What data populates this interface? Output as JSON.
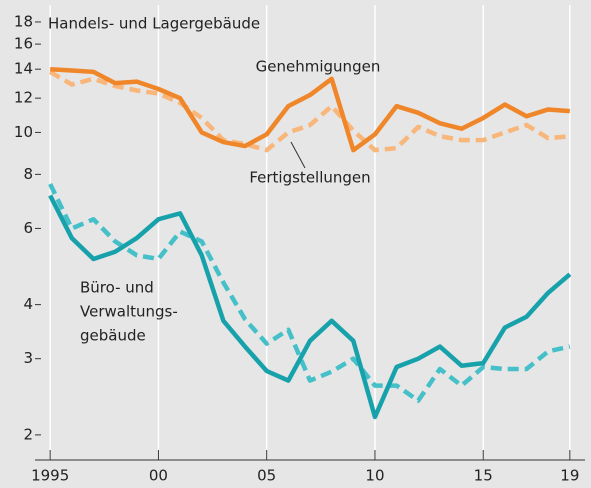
{
  "chart_data": {
    "type": "line",
    "log_y": true,
    "grid": "x",
    "xlim": [
      1994.3,
      2019.7
    ],
    "ylim": [
      1.75,
      19.7
    ],
    "xticks": [
      {
        "value": 1995,
        "label": "1995"
      },
      {
        "value": 2000,
        "label": "00"
      },
      {
        "value": 2005,
        "label": "05"
      },
      {
        "value": 2010,
        "label": "10"
      },
      {
        "value": 2015,
        "label": "15"
      },
      {
        "value": 2019,
        "label": "19"
      }
    ],
    "yticks": [
      2,
      3,
      4,
      6,
      8,
      10,
      12,
      14,
      16,
      18
    ],
    "x": [
      1995,
      1996,
      1997,
      1998,
      1999,
      2000,
      2001,
      2002,
      2003,
      2004,
      2005,
      2006,
      2007,
      2008,
      2009,
      2010,
      2011,
      2012,
      2013,
      2014,
      2015,
      2016,
      2017,
      2018,
      2019
    ],
    "annotations": [
      {
        "text": "Handels- und Lagergebäude"
      },
      {
        "text": "Genehmigungen"
      },
      {
        "text": "Fertigstellungen"
      },
      {
        "lines": [
          "Büro- und",
          "Verwaltungs-",
          "gebäude"
        ]
      }
    ],
    "series": [
      {
        "color": "#f0862a",
        "dashed": false,
        "values": [
          14,
          13.9,
          13.8,
          13.0,
          13.1,
          12.6,
          12,
          10,
          9.5,
          9.3,
          9.9,
          11.5,
          12.2,
          13.3,
          9.1,
          9.9,
          11.5,
          11.1,
          10.5,
          10.2,
          10.8,
          11.6,
          10.9,
          11.3,
          11.2
        ]
      },
      {
        "color": "#f8b67a",
        "dashed": true,
        "values": [
          13.8,
          12.9,
          13.3,
          12.8,
          12.5,
          12.3,
          11.7,
          10.8,
          9.6,
          9.4,
          9.1,
          10,
          10.4,
          11.5,
          10.1,
          9.1,
          9.2,
          10.3,
          9.8,
          9.6,
          9.6,
          10,
          10.4,
          9.7,
          9.8
        ]
      },
      {
        "color": "#17a2ab",
        "dashed": false,
        "values": [
          7.15,
          5.7,
          5.1,
          5.3,
          5.7,
          6.3,
          6.5,
          5.2,
          3.67,
          3.2,
          2.81,
          2.67,
          3.3,
          3.67,
          3.3,
          2.2,
          2.87,
          3.0,
          3.2,
          2.89,
          2.93,
          3.54,
          3.75,
          4.26,
          4.7
        ]
      },
      {
        "color": "#45c0c8",
        "dashed": true,
        "values": [
          7.6,
          6.0,
          6.3,
          5.6,
          5.2,
          5.1,
          5.9,
          5.6,
          4.5,
          3.7,
          3.25,
          3.5,
          2.67,
          2.8,
          3.0,
          2.6,
          2.6,
          2.4,
          2.84,
          2.6,
          2.87,
          2.84,
          2.84,
          3.12,
          3.2
        ]
      }
    ]
  }
}
